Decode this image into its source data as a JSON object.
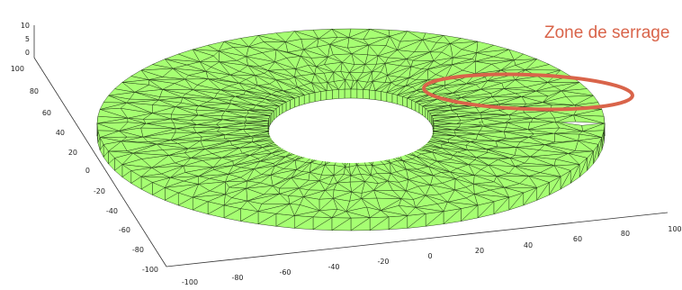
{
  "figure": {
    "annotation": "Zone de serrage",
    "mesh_fill": "#a6ff72",
    "mesh_edge": "#1f3314",
    "highlight_color": "#d9644a"
  },
  "axes": {
    "z_ticks": [
      "10",
      "5",
      "0"
    ],
    "y_ticks": [
      "100",
      "80",
      "60",
      "40",
      "20",
      "0",
      "-20",
      "-40",
      "-60",
      "-80",
      "-100"
    ],
    "x_ticks": [
      "-100",
      "-80",
      "-60",
      "-40",
      "-20",
      "0",
      "20",
      "40",
      "60",
      "80",
      "100"
    ]
  }
}
